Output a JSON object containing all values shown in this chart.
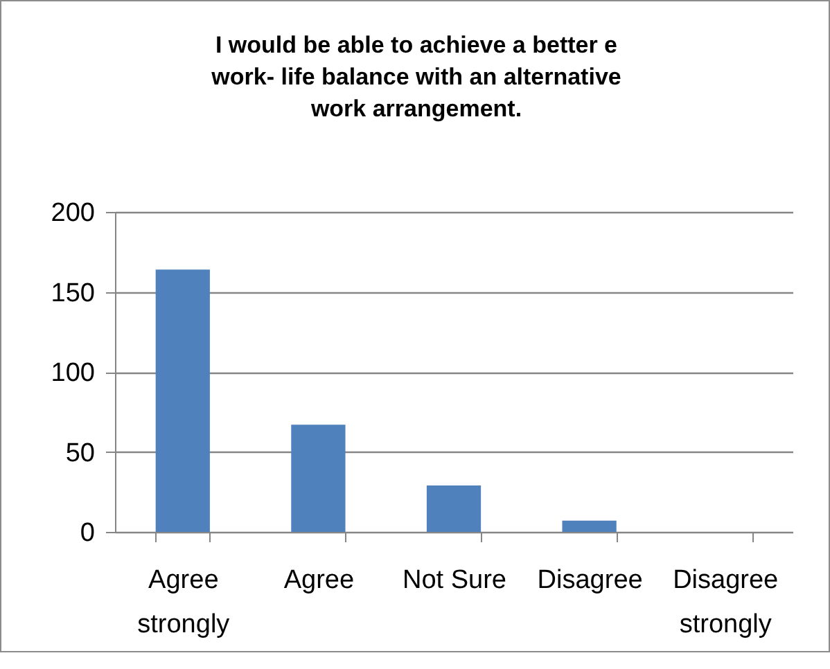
{
  "chart_data": {
    "type": "bar",
    "title": "I would be able to achieve a better e work- life balance with an alternative work arrangement.",
    "categories": [
      "Agree strongly",
      "Agree",
      "Not Sure",
      "Disagree",
      "Disagree strongly"
    ],
    "values": [
      164,
      67,
      29,
      7,
      0
    ],
    "color": "#4f81bd",
    "ylim": [
      0,
      200
    ],
    "yticks": [
      0,
      50,
      100,
      150,
      200
    ],
    "grid": "y"
  }
}
